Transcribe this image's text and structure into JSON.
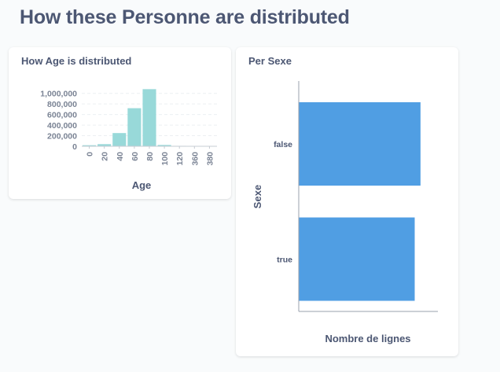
{
  "page": {
    "title": "How these Personne are distributed"
  },
  "cards": {
    "age": {
      "title": "How Age is distributed",
      "chart_data": {
        "type": "bar",
        "title": "How Age is distributed",
        "xlabel": "Age",
        "ylabel": "",
        "categories": [
          "0",
          "20",
          "40",
          "60",
          "80",
          "100",
          "120",
          "360",
          "380"
        ],
        "x_tick_labels": [
          "0",
          "20",
          "40",
          "60",
          "80",
          "100",
          "120",
          "360",
          "380"
        ],
        "values": [
          20000,
          40000,
          250000,
          720000,
          1080000,
          25000,
          8000,
          0,
          2000
        ],
        "y_tick_labels": [
          "1,000,000",
          "800,000",
          "600,000",
          "400,000",
          "200,000",
          "0"
        ],
        "ylim": [
          0,
          1100000
        ],
        "grid": true,
        "color": "#98d9d9"
      }
    },
    "sexe": {
      "title": "Per Sexe",
      "chart_data": {
        "type": "bar",
        "orientation": "horizontal",
        "title": "Per Sexe",
        "categories": [
          "false",
          "true"
        ],
        "values": [
          1050000,
          1000000
        ],
        "xlabel": "Nombre de lignes",
        "ylabel": "Sexe",
        "xlim": [
          0,
          1200000
        ],
        "grid": false,
        "color": "#509ee3"
      }
    }
  }
}
